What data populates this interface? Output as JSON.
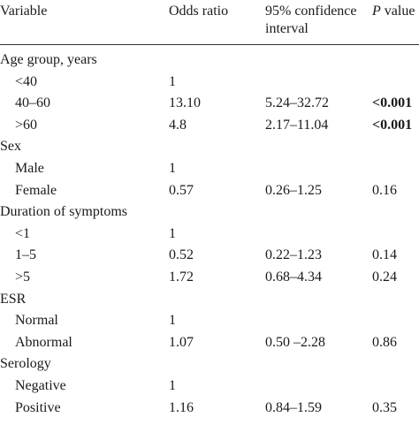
{
  "header": {
    "variable": "Variable",
    "odds_ratio": "Odds ratio",
    "ci_line1": "95% confidence",
    "ci_line2": "interval",
    "p_italic": "P",
    "p_rest": " value"
  },
  "rows": [
    {
      "variable": "Age group, years",
      "odds_ratio": "",
      "ci": "",
      "p": "",
      "indent": false,
      "p_bold": false
    },
    {
      "variable": "<40",
      "odds_ratio": "1",
      "ci": "",
      "p": "",
      "indent": true,
      "p_bold": false
    },
    {
      "variable": "40–60",
      "odds_ratio": "13.10",
      "ci": "5.24–32.72",
      "p": "<0.001",
      "indent": true,
      "p_bold": true
    },
    {
      "variable": ">60",
      "odds_ratio": "4.8",
      "ci": "2.17–11.04",
      "p": "<0.001",
      "indent": true,
      "p_bold": true
    },
    {
      "variable": "Sex",
      "odds_ratio": "",
      "ci": "",
      "p": "",
      "indent": false,
      "p_bold": false
    },
    {
      "variable": "Male",
      "odds_ratio": "1",
      "ci": "",
      "p": "",
      "indent": true,
      "p_bold": false
    },
    {
      "variable": "Female",
      "odds_ratio": "0.57",
      "ci": "0.26–1.25",
      "p": "0.16",
      "indent": true,
      "p_bold": false
    },
    {
      "variable": "Duration of symptoms",
      "odds_ratio": "",
      "ci": "",
      "p": "",
      "indent": false,
      "p_bold": false
    },
    {
      "variable": "<1",
      "odds_ratio": "1",
      "ci": "",
      "p": "",
      "indent": true,
      "p_bold": false
    },
    {
      "variable": "1–5",
      "odds_ratio": "0.52",
      "ci": "0.22–1.23",
      "p": "0.14",
      "indent": true,
      "p_bold": false
    },
    {
      "variable": ">5",
      "odds_ratio": "1.72",
      "ci": "0.68–4.34",
      "p": "0.24",
      "indent": true,
      "p_bold": false
    },
    {
      "variable": "ESR",
      "odds_ratio": "",
      "ci": "",
      "p": "",
      "indent": false,
      "p_bold": false
    },
    {
      "variable": "Normal",
      "odds_ratio": "1",
      "ci": "",
      "p": "",
      "indent": true,
      "p_bold": false
    },
    {
      "variable": "Abnormal",
      "odds_ratio": "1.07",
      "ci": "0.50 –2.28",
      "p": "0.86",
      "indent": true,
      "p_bold": false
    },
    {
      "variable": "Serology",
      "odds_ratio": "",
      "ci": "",
      "p": "",
      "indent": false,
      "p_bold": false
    },
    {
      "variable": "Negative",
      "odds_ratio": "1",
      "ci": "",
      "p": "",
      "indent": true,
      "p_bold": false
    },
    {
      "variable": "Positive",
      "odds_ratio": "1.16",
      "ci": "0.84–1.59",
      "p": "0.35",
      "indent": true,
      "p_bold": false
    }
  ]
}
